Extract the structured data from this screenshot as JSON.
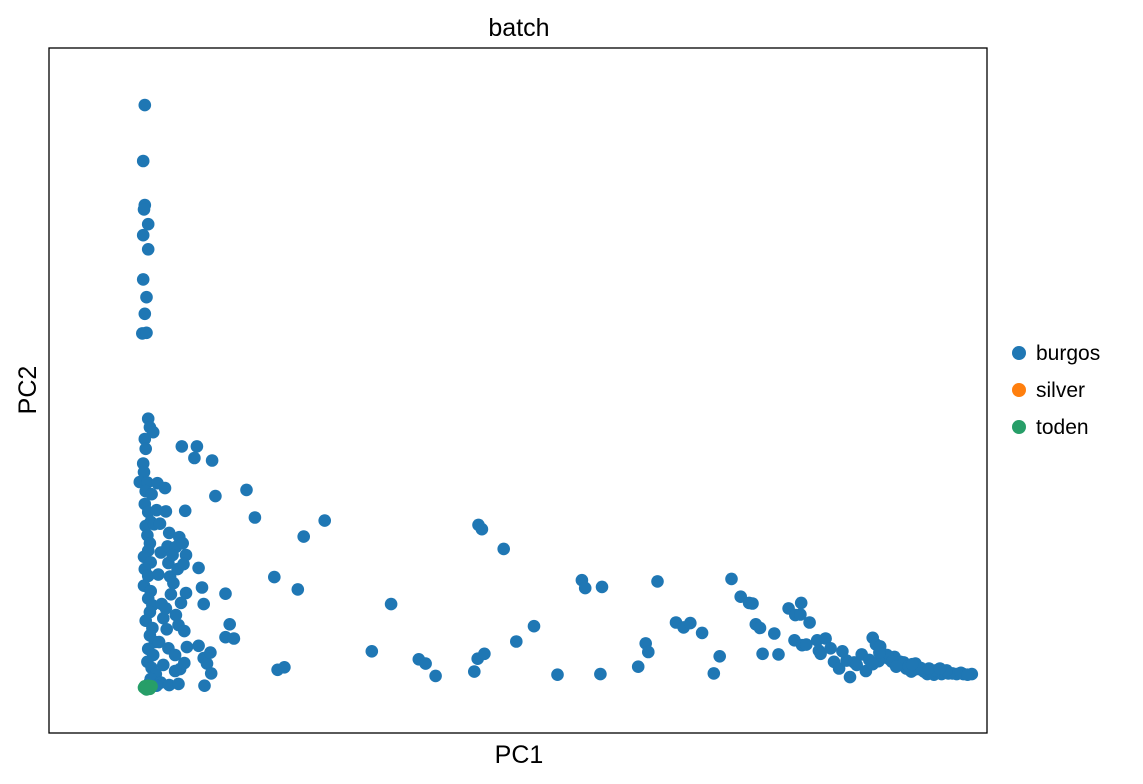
{
  "chart_data": {
    "type": "scatter",
    "title": "batch",
    "xlabel": "PC1",
    "ylabel": "PC2",
    "xlim": [
      0,
      100
    ],
    "ylim": [
      0,
      100
    ],
    "xticks": false,
    "yticks": false,
    "grid": false,
    "legend_position": "right",
    "series": [
      {
        "name": "burgos",
        "color": "#1f77b4",
        "points": [
          [
            5.6,
            96.5
          ],
          [
            5.4,
            87.4
          ],
          [
            5.6,
            80.2
          ],
          [
            5.5,
            79.5
          ],
          [
            6.0,
            77.1
          ],
          [
            5.4,
            75.3
          ],
          [
            6.0,
            73.0
          ],
          [
            5.4,
            68.1
          ],
          [
            5.8,
            65.2
          ],
          [
            5.6,
            62.5
          ],
          [
            5.3,
            59.3
          ],
          [
            5.8,
            59.4
          ],
          [
            6.0,
            45.4
          ],
          [
            6.2,
            44.0
          ],
          [
            6.6,
            43.2
          ],
          [
            5.6,
            42.1
          ],
          [
            5.7,
            40.5
          ],
          [
            5.4,
            38.1
          ],
          [
            5.5,
            36.7
          ],
          [
            5.0,
            35.1
          ],
          [
            5.9,
            35.0
          ],
          [
            5.7,
            33.6
          ],
          [
            6.4,
            33.1
          ],
          [
            5.6,
            31.5
          ],
          [
            6.0,
            30.2
          ],
          [
            6.3,
            28.6
          ],
          [
            5.7,
            27.9
          ],
          [
            6.7,
            28.2
          ],
          [
            5.9,
            26.4
          ],
          [
            6.2,
            25.1
          ],
          [
            6.0,
            23.9
          ],
          [
            5.5,
            22.9
          ],
          [
            6.3,
            22.0
          ],
          [
            5.6,
            20.9
          ],
          [
            6.0,
            19.8
          ],
          [
            5.5,
            18.2
          ],
          [
            6.3,
            17.3
          ],
          [
            6.0,
            16.1
          ],
          [
            6.5,
            15.0
          ],
          [
            6.2,
            13.9
          ],
          [
            5.7,
            12.5
          ],
          [
            6.5,
            11.3
          ],
          [
            6.2,
            10.1
          ],
          [
            6.8,
            9.0
          ],
          [
            6.0,
            7.9
          ],
          [
            6.6,
            6.9
          ],
          [
            5.9,
            5.8
          ],
          [
            6.4,
            4.8
          ],
          [
            6.9,
            3.8
          ],
          [
            6.2,
            2.5
          ],
          [
            6.7,
            1.9
          ],
          [
            6.3,
            3.0
          ],
          [
            5.8,
            1.6
          ],
          [
            7.1,
            34.9
          ],
          [
            7.0,
            30.5
          ],
          [
            7.4,
            28.3
          ],
          [
            7.5,
            23.6
          ],
          [
            7.2,
            20.0
          ],
          [
            7.6,
            15.2
          ],
          [
            7.8,
            12.9
          ],
          [
            7.3,
            9.0
          ],
          [
            7.8,
            5.3
          ],
          [
            7.5,
            2.4
          ],
          [
            7.0,
            1.9
          ],
          [
            8.0,
            34.1
          ],
          [
            8.1,
            30.3
          ],
          [
            8.5,
            26.8
          ],
          [
            8.3,
            24.6
          ],
          [
            8.4,
            21.9
          ],
          [
            8.6,
            19.7
          ],
          [
            8.7,
            16.8
          ],
          [
            8.1,
            14.5
          ],
          [
            8.2,
            11.1
          ],
          [
            8.4,
            8.0
          ],
          [
            8.5,
            2.0
          ],
          [
            9.7,
            26.1
          ],
          [
            9.3,
            24.5
          ],
          [
            8.9,
            23.2
          ],
          [
            9.5,
            20.9
          ],
          [
            9.0,
            18.6
          ],
          [
            9.3,
            13.4
          ],
          [
            9.6,
            11.8
          ],
          [
            9.2,
            6.9
          ],
          [
            9.8,
            4.6
          ],
          [
            9.2,
            4.3
          ],
          [
            9.6,
            2.2
          ],
          [
            10.0,
            40.9
          ],
          [
            10.4,
            30.4
          ],
          [
            10.1,
            25.1
          ],
          [
            10.5,
            23.2
          ],
          [
            10.2,
            21.7
          ],
          [
            10.5,
            17.0
          ],
          [
            9.9,
            15.4
          ],
          [
            10.3,
            10.8
          ],
          [
            10.6,
            8.2
          ],
          [
            10.3,
            5.6
          ],
          [
            11.8,
            40.9
          ],
          [
            11.5,
            39.0
          ],
          [
            12.0,
            21.1
          ],
          [
            12.4,
            17.9
          ],
          [
            12.6,
            15.2
          ],
          [
            12.0,
            8.4
          ],
          [
            12.6,
            6.4
          ],
          [
            13.0,
            5.5
          ],
          [
            12.7,
            1.9
          ],
          [
            13.4,
            7.3
          ],
          [
            13.5,
            3.9
          ],
          [
            13.6,
            38.6
          ],
          [
            14.0,
            32.8
          ],
          [
            15.7,
            11.9
          ],
          [
            15.2,
            9.8
          ],
          [
            16.2,
            9.6
          ],
          [
            17.7,
            33.8
          ],
          [
            18.7,
            29.3
          ],
          [
            15.2,
            16.9
          ],
          [
            21.0,
            19.6
          ],
          [
            21.4,
            4.5
          ],
          [
            22.2,
            4.9
          ],
          [
            23.8,
            17.6
          ],
          [
            24.5,
            26.2
          ],
          [
            27.0,
            28.8
          ],
          [
            32.6,
            7.5
          ],
          [
            34.9,
            15.2
          ],
          [
            38.2,
            6.2
          ],
          [
            39.0,
            5.5
          ],
          [
            40.2,
            3.5
          ],
          [
            45.3,
            28.1
          ],
          [
            45.7,
            27.4
          ],
          [
            48.3,
            24.2
          ],
          [
            45.2,
            6.3
          ],
          [
            44.8,
            4.2
          ],
          [
            46.0,
            7.1
          ],
          [
            49.8,
            9.1
          ],
          [
            51.9,
            11.6
          ],
          [
            54.7,
            3.7
          ],
          [
            57.6,
            19.1
          ],
          [
            58.0,
            17.8
          ],
          [
            60.0,
            18.0
          ],
          [
            59.8,
            3.8
          ],
          [
            64.3,
            5.0
          ],
          [
            65.2,
            8.8
          ],
          [
            65.5,
            7.4
          ],
          [
            66.6,
            18.9
          ],
          [
            68.8,
            12.2
          ],
          [
            69.7,
            11.4
          ],
          [
            70.5,
            12.1
          ],
          [
            71.9,
            10.5
          ],
          [
            73.3,
            3.9
          ],
          [
            74.0,
            6.7
          ],
          [
            75.4,
            19.3
          ],
          [
            76.5,
            16.4
          ],
          [
            77.5,
            15.4
          ],
          [
            77.9,
            15.3
          ],
          [
            78.3,
            11.9
          ],
          [
            78.8,
            11.3
          ],
          [
            79.1,
            7.1
          ],
          [
            80.5,
            10.4
          ],
          [
            81.0,
            7.0
          ],
          [
            82.2,
            14.5
          ],
          [
            83.0,
            13.4
          ],
          [
            83.7,
            15.4
          ],
          [
            83.6,
            13.5
          ],
          [
            82.9,
            9.3
          ],
          [
            83.8,
            8.5
          ],
          [
            84.3,
            8.6
          ],
          [
            84.7,
            12.2
          ],
          [
            85.6,
            9.3
          ],
          [
            85.8,
            7.6
          ],
          [
            86.0,
            7.1
          ],
          [
            86.6,
            9.6
          ],
          [
            87.2,
            8.0
          ],
          [
            87.6,
            5.8
          ],
          [
            88.2,
            4.7
          ],
          [
            89.5,
            3.3
          ],
          [
            89.1,
            6.0
          ],
          [
            90.0,
            5.7
          ],
          [
            90.3,
            5.3
          ],
          [
            91.4,
            4.3
          ],
          [
            92.2,
            9.7
          ],
          [
            92.6,
            8.6
          ],
          [
            93.1,
            8.3
          ],
          [
            93.5,
            7.0
          ],
          [
            93.8,
            6.5
          ],
          [
            94.3,
            6.1
          ],
          [
            94.8,
            6.6
          ],
          [
            95.5,
            5.8
          ],
          [
            95.9,
            5.7
          ],
          [
            96.2,
            4.7
          ],
          [
            96.8,
            4.2
          ],
          [
            97.1,
            4.5
          ],
          [
            97.3,
            5.5
          ],
          [
            97.7,
            4.6
          ],
          [
            98.3,
            4.2
          ],
          [
            98.7,
            3.8
          ],
          [
            99.2,
            4.2
          ],
          [
            99.5,
            3.7
          ],
          [
            100.0,
            4.1
          ],
          [
            100.4,
            3.8
          ],
          [
            100.8,
            4.0
          ],
          [
            101.2,
            3.9
          ],
          [
            101.7,
            3.9
          ],
          [
            102.2,
            3.8
          ],
          [
            103.0,
            3.8
          ],
          [
            104.0,
            3.8
          ],
          [
            93.9,
            6.9
          ],
          [
            94.5,
            5.8
          ],
          [
            88.6,
            7.5
          ],
          [
            90.9,
            7.0
          ],
          [
            91.8,
            6.1
          ],
          [
            92.9,
            5.9
          ],
          [
            96.5,
            5.1
          ],
          [
            97.9,
            4.8
          ],
          [
            99.7,
            4.4
          ],
          [
            101.0,
            4.4
          ],
          [
            92.2,
            5.4
          ],
          [
            93.0,
            7.3
          ],
          [
            95.0,
            5.0
          ],
          [
            96.9,
            5.4
          ],
          [
            98.9,
            4.7
          ],
          [
            100.2,
            4.7
          ],
          [
            102.7,
            4.0
          ],
          [
            103.5,
            3.7
          ]
        ]
      },
      {
        "name": "silver",
        "color": "#ff7f0e",
        "points": [
          [
            5.8,
            1.7
          ],
          [
            6.0,
            1.6
          ],
          [
            6.2,
            1.7
          ]
        ]
      },
      {
        "name": "toden",
        "color": "#279e68",
        "points": [
          [
            5.5,
            1.6
          ],
          [
            5.7,
            1.4
          ],
          [
            5.9,
            1.7
          ],
          [
            6.1,
            1.5
          ],
          [
            6.3,
            1.6
          ],
          [
            5.6,
            1.8
          ],
          [
            6.0,
            1.9
          ],
          [
            6.4,
            1.8
          ],
          [
            5.8,
            1.3
          ],
          [
            6.2,
            1.4
          ]
        ]
      }
    ]
  }
}
